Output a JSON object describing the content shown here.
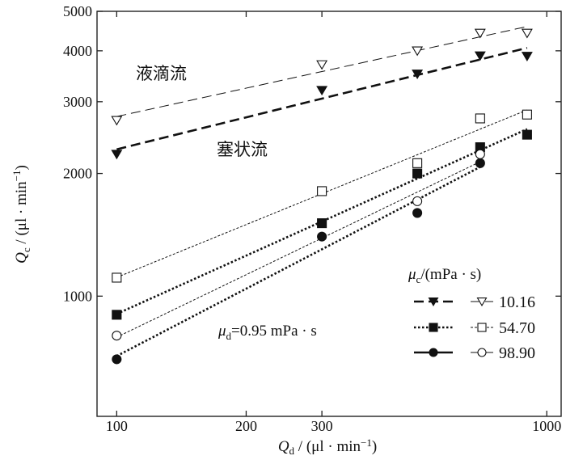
{
  "chart_data": {
    "type": "scatter",
    "scale": "log-log",
    "xlabel": {
      "symbol": "Q",
      "sub": "d",
      "unit": " / (μl · min",
      "sup": "−1",
      "close": ")"
    },
    "ylabel": {
      "symbol": "Q",
      "sub": "c",
      "unit": " / (μl · min",
      "sup": "−1",
      "close": ")"
    },
    "xlim": [
      90,
      1080
    ],
    "ylim": [
      507,
      5000
    ],
    "xticks": [
      {
        "v": 100,
        "label": "100"
      },
      {
        "v": 200,
        "label": "200"
      },
      {
        "v": 300,
        "label": "300"
      },
      {
        "v": 1000,
        "label": "1000"
      }
    ],
    "yticks": [
      {
        "v": 1000,
        "label": "1000"
      },
      {
        "v": 2000,
        "label": "2000"
      },
      {
        "v": 3000,
        "label": "3000"
      },
      {
        "v": 4000,
        "label": "4000"
      },
      {
        "v": 5000,
        "label": "5000"
      }
    ],
    "grid": false,
    "annotations": {
      "droplet_flow": "液滴流",
      "slug_flow": "塞状流",
      "mu_d": {
        "symbol": "μ",
        "sub": "d",
        "text": "=0.95 mPa · s"
      }
    },
    "legend": {
      "title": {
        "symbol": "μ",
        "sub": "c",
        "text": "/(mPa · s)"
      },
      "placement": "bottom-right",
      "rows": [
        "10.16",
        "54.70",
        "98.90"
      ]
    },
    "series": [
      {
        "name": "10.16 filled",
        "mu_c": "10.16",
        "marker": "triangle-down",
        "filled": true,
        "line": "thick-dash",
        "x": [
          100,
          300,
          500,
          700,
          900
        ],
        "y": [
          2230,
          3200,
          3510,
          3890,
          3880
        ]
      },
      {
        "name": "10.16 open",
        "mu_c": "10.16",
        "marker": "triangle-down",
        "filled": false,
        "line": "thin-dash",
        "x": [
          100,
          300,
          500,
          700,
          900
        ],
        "y": [
          2700,
          3700,
          4000,
          4420,
          4420
        ]
      },
      {
        "name": "54.70 filled",
        "mu_c": "54.70",
        "marker": "square",
        "filled": true,
        "line": "thick-dot",
        "x": [
          100,
          300,
          500,
          700,
          900
        ],
        "y": [
          900,
          1510,
          2000,
          2320,
          2490
        ]
      },
      {
        "name": "54.70 open",
        "mu_c": "54.70",
        "marker": "square",
        "filled": false,
        "line": "thin-dot",
        "x": [
          100,
          300,
          500,
          700,
          900
        ],
        "y": [
          1110,
          1810,
          2120,
          2730,
          2790
        ]
      },
      {
        "name": "98.90 filled",
        "mu_c": "98.90",
        "marker": "circle",
        "filled": true,
        "line": "thick-dot",
        "x": [
          100,
          300,
          500,
          700
        ],
        "y": [
          700,
          1400,
          1600,
          2120
        ]
      },
      {
        "name": "98.90 open",
        "mu_c": "98.90",
        "marker": "circle",
        "filled": false,
        "line": "thin-dot",
        "x": [
          100,
          500,
          700
        ],
        "y": [
          800,
          1710,
          2230
        ]
      }
    ]
  }
}
